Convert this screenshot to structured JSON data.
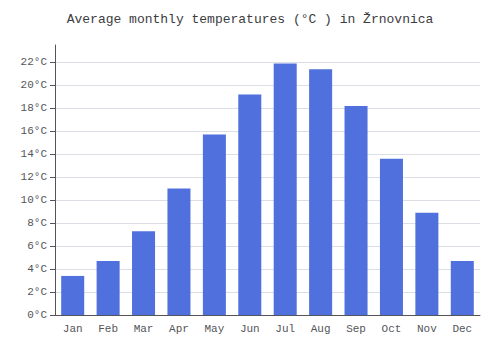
{
  "chart_data": {
    "type": "bar",
    "title": "Average monthly temperatures (°C ) in Žrnovnica",
    "categories": [
      "Jan",
      "Feb",
      "Mar",
      "Apr",
      "May",
      "Jun",
      "Jul",
      "Aug",
      "Sep",
      "Oct",
      "Nov",
      "Dec"
    ],
    "values": [
      3.4,
      4.7,
      7.3,
      11.0,
      15.7,
      19.2,
      21.9,
      21.4,
      18.2,
      13.6,
      8.9,
      4.7
    ],
    "ylim": [
      0,
      23.5
    ],
    "yticks": [
      {
        "value": 0,
        "label": "0°C"
      },
      {
        "value": 2,
        "label": "2°C"
      },
      {
        "value": 4,
        "label": "4°C"
      },
      {
        "value": 6,
        "label": "6°C"
      },
      {
        "value": 8,
        "label": "8°C"
      },
      {
        "value": 10,
        "label": "10°C"
      },
      {
        "value": 12,
        "label": "12°C"
      },
      {
        "value": 14,
        "label": "14°C"
      },
      {
        "value": 16,
        "label": "16°C"
      },
      {
        "value": 18,
        "label": "18°C"
      },
      {
        "value": 20,
        "label": "20°C"
      },
      {
        "value": 22,
        "label": "22°C"
      }
    ],
    "grid": true
  }
}
